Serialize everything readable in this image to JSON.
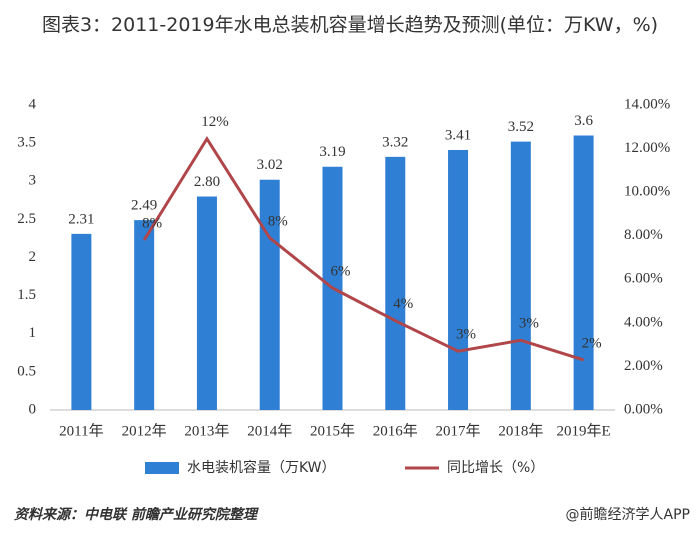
{
  "chart_data": {
    "type": "bar_line",
    "title": "图表3：2011-2019年水电总装机容量增长趋势及预测(单位：万KW，%)",
    "categories": [
      "2011年",
      "2012年",
      "2013年",
      "2014年",
      "2015年",
      "2016年",
      "2017年",
      "2018年",
      "2019年E"
    ],
    "series": [
      {
        "name": "水电装机容量（万KW）",
        "color": "#2f80d4",
        "type": "bar",
        "values": [
          2.31,
          2.49,
          2.8,
          3.02,
          3.19,
          3.32,
          3.41,
          3.52,
          3.6
        ],
        "value_labels": [
          "2.31",
          "2.49",
          "2.80",
          "3.02",
          "3.19",
          "3.32",
          "3.41",
          "3.52",
          "3.6"
        ]
      },
      {
        "name": "同比增长（%）",
        "color": "#b0454a",
        "type": "line",
        "axis": "y2",
        "values": [
          null,
          7.8,
          12.45,
          7.9,
          5.6,
          4.1,
          2.7,
          3.2,
          2.3
        ],
        "value_labels": [
          null,
          "8%",
          "12%",
          "8%",
          "6%",
          "4%",
          "3%",
          "3%",
          "2%"
        ]
      }
    ],
    "ylim": [
      0,
      4
    ],
    "yticks": [
      0,
      0.5,
      1,
      1.5,
      2,
      2.5,
      3,
      3.5,
      4
    ],
    "y2lim": [
      0,
      14
    ],
    "y2ticks": [
      {
        "value": 0,
        "label": "0.00%"
      },
      {
        "value": 2,
        "label": "2.00%"
      },
      {
        "value": 4,
        "label": "4.00%"
      },
      {
        "value": 6,
        "label": "6.00%"
      },
      {
        "value": 8,
        "label": "8.00%"
      },
      {
        "value": 10,
        "label": "10.00%"
      },
      {
        "value": 12,
        "label": "12.00%"
      },
      {
        "value": 14,
        "label": "14.00%"
      }
    ],
    "legend": "bottom",
    "source": "资料来源：中电联 前瞻产业研究院整理",
    "credit": "@前瞻经济学人APP"
  }
}
